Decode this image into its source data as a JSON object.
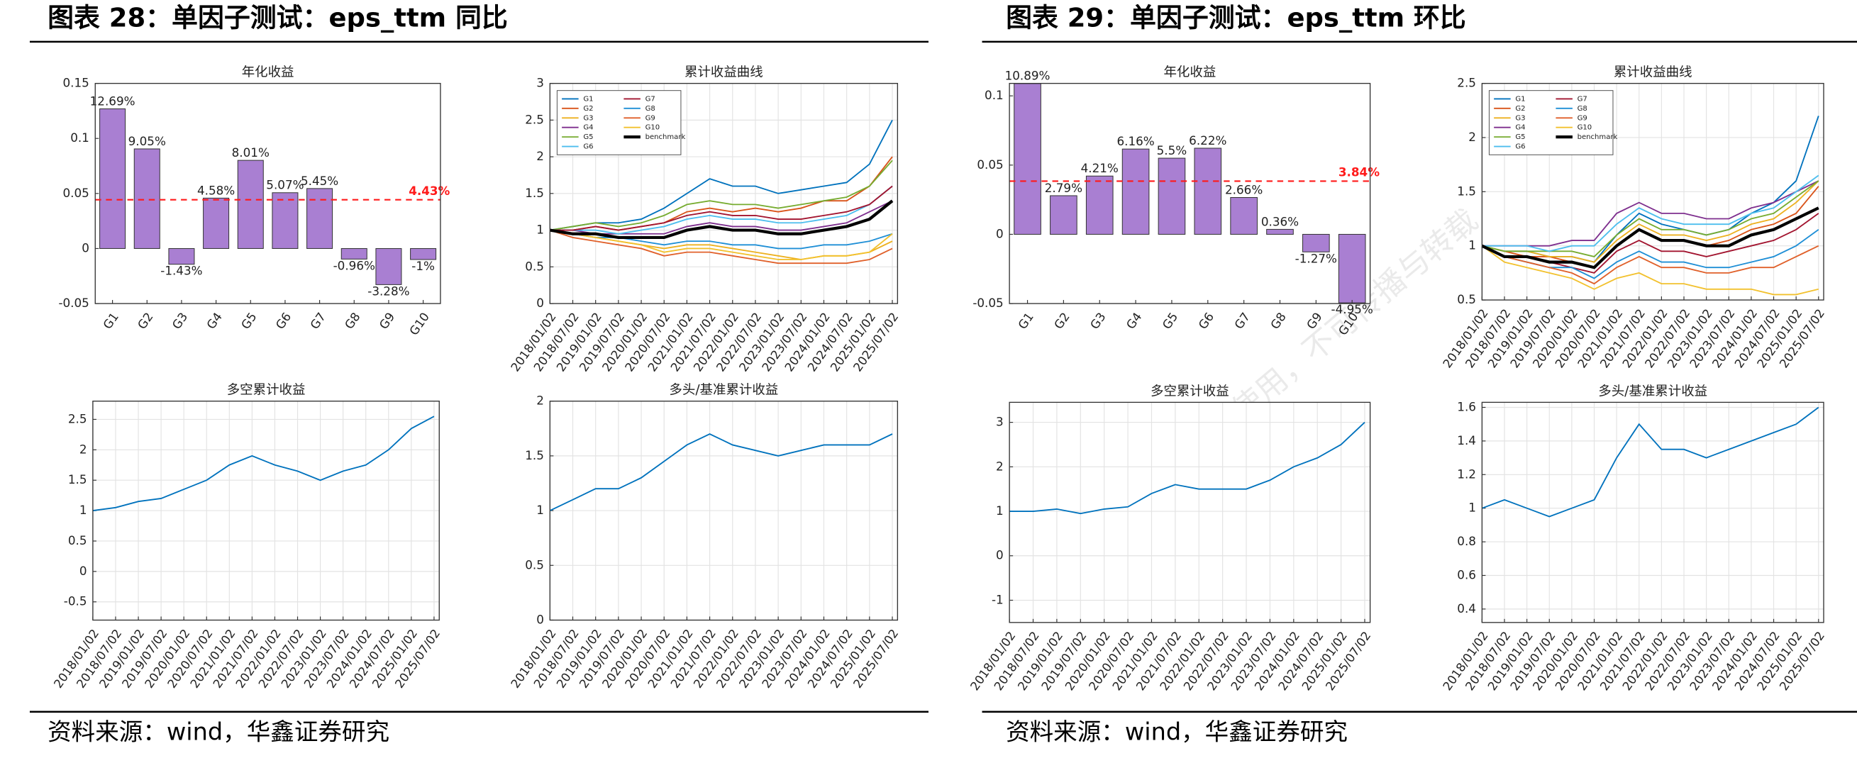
{
  "figures": [
    {
      "title": "图表 28：单因子测试：eps_ttm 同比",
      "source": "资料来源：wind，华鑫证券研究"
    },
    {
      "title": "图表 29：单因子测试：eps_ttm 环比",
      "source": "资料来源：wind，华鑫证券研究"
    }
  ],
  "watermark": "仅供本人内部使用，不可传播与转载",
  "chart_data": [
    {
      "type": "bar",
      "title": "年化收益",
      "categories": [
        "G1",
        "G2",
        "G3",
        "G4",
        "G5",
        "G6",
        "G7",
        "G8",
        "G9",
        "G10"
      ],
      "values": [
        0.1269,
        0.0905,
        -0.0143,
        0.0458,
        0.0801,
        0.0507,
        0.0545,
        -0.0096,
        -0.0328,
        -0.01
      ],
      "value_labels": [
        "12.69%",
        "9.05%",
        "-1.43%",
        "4.58%",
        "8.01%",
        "5.07%",
        "5.45%",
        "-0.96%",
        "-3.28%",
        "-1%"
      ],
      "color": "#a97fd2",
      "ylim": [
        -0.05,
        0.15
      ],
      "yticks": [
        -0.05,
        0,
        0.05,
        0.1,
        0.15
      ],
      "grid": false,
      "reference_line": {
        "value": 0.0443,
        "label": "4.43%",
        "color": "#ff1a1a"
      }
    },
    {
      "type": "line",
      "title": "累计收益曲线",
      "x": [
        "2018/01/02",
        "2018/07/02",
        "2019/01/02",
        "2019/07/02",
        "2020/01/02",
        "2020/07/02",
        "2021/01/02",
        "2021/07/02",
        "2022/01/02",
        "2022/07/02",
        "2023/01/02",
        "2023/07/02",
        "2024/01/02",
        "2024/07/02",
        "2025/01/02",
        "2025/07/02"
      ],
      "ylim": [
        0,
        3
      ],
      "yticks": [
        0,
        0.5,
        1,
        1.5,
        2,
        2.5,
        3
      ],
      "grid": true,
      "legend": "upper left",
      "series": [
        {
          "name": "G1",
          "color": "#0072bd",
          "values": [
            1,
            1.05,
            1.1,
            1.1,
            1.15,
            1.3,
            1.5,
            1.7,
            1.6,
            1.6,
            1.5,
            1.55,
            1.6,
            1.65,
            1.9,
            2.5
          ]
        },
        {
          "name": "G2",
          "color": "#d95319",
          "values": [
            1,
            1,
            1.05,
            1,
            1.05,
            1.1,
            1.25,
            1.3,
            1.25,
            1.3,
            1.25,
            1.3,
            1.4,
            1.4,
            1.6,
            2
          ]
        },
        {
          "name": "G3",
          "color": "#edb120",
          "values": [
            1,
            0.95,
            0.9,
            0.85,
            0.8,
            0.75,
            0.8,
            0.8,
            0.75,
            0.7,
            0.65,
            0.6,
            0.65,
            0.65,
            0.7,
            0.85
          ]
        },
        {
          "name": "G4",
          "color": "#7e2f8e",
          "values": [
            1,
            1,
            0.95,
            0.95,
            0.95,
            0.95,
            1.05,
            1.1,
            1.05,
            1.05,
            1,
            1,
            1.05,
            1.1,
            1.25,
            1.4
          ]
        },
        {
          "name": "G5",
          "color": "#77ac30",
          "values": [
            1,
            1.05,
            1.1,
            1.05,
            1.1,
            1.2,
            1.35,
            1.4,
            1.35,
            1.35,
            1.3,
            1.35,
            1.4,
            1.45,
            1.6,
            1.95
          ]
        },
        {
          "name": "G6",
          "color": "#4dbeee",
          "values": [
            1,
            1,
            1,
            0.95,
            1,
            1.05,
            1.15,
            1.2,
            1.15,
            1.15,
            1.1,
            1.1,
            1.15,
            1.2,
            1.35,
            1.6
          ]
        },
        {
          "name": "G7",
          "color": "#a2142f",
          "values": [
            1,
            1,
            1.05,
            1,
            1.05,
            1.1,
            1.2,
            1.25,
            1.2,
            1.2,
            1.15,
            1.15,
            1.2,
            1.25,
            1.35,
            1.6
          ]
        },
        {
          "name": "G8",
          "color": "#1f8fd6",
          "values": [
            1,
            0.95,
            0.9,
            0.9,
            0.85,
            0.8,
            0.85,
            0.85,
            0.8,
            0.8,
            0.75,
            0.75,
            0.8,
            0.8,
            0.85,
            0.95
          ]
        },
        {
          "name": "G9",
          "color": "#e0602a",
          "values": [
            1,
            0.9,
            0.85,
            0.8,
            0.75,
            0.65,
            0.7,
            0.7,
            0.65,
            0.6,
            0.55,
            0.55,
            0.55,
            0.55,
            0.6,
            0.75
          ]
        },
        {
          "name": "G10",
          "color": "#f2c12e",
          "values": [
            1,
            0.95,
            0.9,
            0.85,
            0.8,
            0.7,
            0.75,
            0.75,
            0.7,
            0.65,
            0.6,
            0.6,
            0.65,
            0.65,
            0.7,
            0.95
          ]
        },
        {
          "name": "benchmark",
          "color": "#000000",
          "line_width": 2.5,
          "values": [
            1,
            0.95,
            0.95,
            0.9,
            0.9,
            0.9,
            1,
            1.05,
            1,
            1,
            0.95,
            0.95,
            1,
            1.05,
            1.15,
            1.4
          ]
        }
      ]
    },
    {
      "type": "line",
      "title": "多空累计收益",
      "x": [
        "2018/01/02",
        "2018/07/02",
        "2019/01/02",
        "2019/07/02",
        "2020/01/02",
        "2020/07/02",
        "2021/01/02",
        "2021/07/02",
        "2022/01/02",
        "2022/07/02",
        "2023/01/02",
        "2023/07/02",
        "2024/01/02",
        "2024/07/02",
        "2025/01/02",
        "2025/07/02"
      ],
      "ylim": [
        -0.8,
        2.8
      ],
      "yticks": [
        -0.5,
        0,
        0.5,
        1,
        1.5,
        2,
        2.5
      ],
      "grid": true,
      "color": "#0072bd",
      "values": [
        1,
        1.05,
        1.15,
        1.2,
        1.35,
        1.5,
        1.75,
        1.9,
        1.75,
        1.65,
        1.5,
        1.65,
        1.75,
        2,
        2.35,
        2.55
      ]
    },
    {
      "type": "line",
      "title": "多头/基准累计收益",
      "x": [
        "2018/01/02",
        "2018/07/02",
        "2019/01/02",
        "2019/07/02",
        "2020/01/02",
        "2020/07/02",
        "2021/01/02",
        "2021/07/02",
        "2022/01/02",
        "2022/07/02",
        "2023/01/02",
        "2023/07/02",
        "2024/01/02",
        "2024/07/02",
        "2025/01/02",
        "2025/07/02"
      ],
      "ylim": [
        0,
        2
      ],
      "yticks": [
        0,
        0.5,
        1,
        1.5,
        2
      ],
      "grid": true,
      "color": "#0072bd",
      "values": [
        1,
        1.1,
        1.2,
        1.2,
        1.3,
        1.45,
        1.6,
        1.7,
        1.6,
        1.55,
        1.5,
        1.55,
        1.6,
        1.6,
        1.6,
        1.7
      ]
    },
    {
      "type": "bar",
      "title": "年化收益",
      "categories": [
        "G1",
        "G2",
        "G3",
        "G4",
        "G5",
        "G6",
        "G7",
        "G8",
        "G9",
        "G10"
      ],
      "values": [
        0.1089,
        0.0279,
        0.0421,
        0.0616,
        0.055,
        0.0622,
        0.0266,
        0.0036,
        -0.0127,
        -0.0495
      ],
      "value_labels": [
        "10.89%",
        "2.79%",
        "4.21%",
        "6.16%",
        "5.5%",
        "6.22%",
        "2.66%",
        "0.36%",
        "-1.27%",
        "-4.95%"
      ],
      "color": "#a97fd2",
      "ylim": [
        -0.05,
        0.109
      ],
      "yticks": [
        -0.05,
        0,
        0.05,
        0.1
      ],
      "grid": false,
      "reference_line": {
        "value": 0.0384,
        "label": "3.84%",
        "color": "#ff1a1a"
      }
    },
    {
      "type": "line",
      "title": "累计收益曲线",
      "x": [
        "2018/01/02",
        "2018/07/02",
        "2019/01/02",
        "2019/07/02",
        "2020/01/02",
        "2020/07/02",
        "2021/01/02",
        "2021/07/02",
        "2022/01/02",
        "2022/07/02",
        "2023/01/02",
        "2023/07/02",
        "2024/01/02",
        "2024/07/02",
        "2025/01/02",
        "2025/07/02"
      ],
      "ylim": [
        0.5,
        2.5
      ],
      "yticks": [
        0.5,
        1,
        1.5,
        2,
        2.5
      ],
      "grid": true,
      "legend": "upper left",
      "series": [
        {
          "name": "G1",
          "color": "#0072bd",
          "values": [
            1,
            0.95,
            0.95,
            0.9,
            0.9,
            0.85,
            1.1,
            1.3,
            1.2,
            1.15,
            1.1,
            1.15,
            1.3,
            1.4,
            1.6,
            2.2
          ]
        },
        {
          "name": "G2",
          "color": "#d95319",
          "values": [
            1,
            0.95,
            0.9,
            0.9,
            0.85,
            0.8,
            1,
            1.15,
            1.05,
            1.05,
            1,
            1.05,
            1.15,
            1.2,
            1.3,
            1.55
          ]
        },
        {
          "name": "G3",
          "color": "#edb120",
          "values": [
            1,
            0.95,
            0.95,
            0.9,
            0.9,
            0.85,
            1.05,
            1.2,
            1.1,
            1.1,
            1.05,
            1.1,
            1.2,
            1.25,
            1.4,
            1.6
          ]
        },
        {
          "name": "G4",
          "color": "#7e2f8e",
          "values": [
            1,
            1,
            1,
            1,
            1.05,
            1.05,
            1.3,
            1.4,
            1.3,
            1.3,
            1.25,
            1.25,
            1.35,
            1.4,
            1.5,
            1.6
          ]
        },
        {
          "name": "G5",
          "color": "#77ac30",
          "values": [
            1,
            0.95,
            0.95,
            0.95,
            0.95,
            0.9,
            1.1,
            1.25,
            1.15,
            1.15,
            1.1,
            1.15,
            1.25,
            1.3,
            1.45,
            1.6
          ]
        },
        {
          "name": "G6",
          "color": "#4dbeee",
          "values": [
            1,
            1,
            1,
            0.95,
            1,
            1,
            1.2,
            1.35,
            1.25,
            1.2,
            1.2,
            1.2,
            1.3,
            1.35,
            1.5,
            1.65
          ]
        },
        {
          "name": "G7",
          "color": "#a2142f",
          "values": [
            1,
            0.9,
            0.9,
            0.85,
            0.8,
            0.75,
            0.95,
            1.05,
            0.95,
            0.95,
            0.9,
            0.95,
            1,
            1.05,
            1.15,
            1.3
          ]
        },
        {
          "name": "G8",
          "color": "#1f8fd6",
          "values": [
            1,
            0.9,
            0.85,
            0.8,
            0.8,
            0.7,
            0.85,
            0.95,
            0.85,
            0.85,
            0.8,
            0.8,
            0.85,
            0.9,
            1,
            1.15
          ]
        },
        {
          "name": "G9",
          "color": "#e0602a",
          "values": [
            1,
            0.9,
            0.85,
            0.8,
            0.75,
            0.65,
            0.8,
            0.9,
            0.8,
            0.8,
            0.75,
            0.75,
            0.8,
            0.8,
            0.9,
            1
          ]
        },
        {
          "name": "G10",
          "color": "#f2c12e",
          "values": [
            1,
            0.85,
            0.8,
            0.75,
            0.7,
            0.6,
            0.7,
            0.75,
            0.65,
            0.65,
            0.6,
            0.6,
            0.6,
            0.55,
            0.55,
            0.6
          ]
        },
        {
          "name": "benchmark",
          "color": "#000000",
          "line_width": 2.5,
          "values": [
            1,
            0.9,
            0.9,
            0.85,
            0.85,
            0.8,
            1,
            1.15,
            1.05,
            1.05,
            1,
            1,
            1.1,
            1.15,
            1.25,
            1.35
          ]
        }
      ]
    },
    {
      "type": "line",
      "title": "多空累计收益",
      "x": [
        "2018/01/02",
        "2018/07/02",
        "2019/01/02",
        "2019/07/02",
        "2020/01/02",
        "2020/07/02",
        "2021/01/02",
        "2021/07/02",
        "2022/01/02",
        "2022/07/02",
        "2023/01/02",
        "2023/07/02",
        "2024/01/02",
        "2024/07/02",
        "2025/01/02",
        "2025/07/02"
      ],
      "ylim": [
        -1.5,
        3.45
      ],
      "yticks": [
        -1,
        0,
        1,
        2,
        3
      ],
      "grid": true,
      "color": "#0072bd",
      "values": [
        1,
        1,
        1.05,
        0.95,
        1.05,
        1.1,
        1.4,
        1.6,
        1.5,
        1.5,
        1.5,
        1.7,
        2,
        2.2,
        2.5,
        3
      ]
    },
    {
      "type": "line",
      "title": "多头/基准累计收益",
      "x": [
        "2018/01/02",
        "2018/07/02",
        "2019/01/02",
        "2019/07/02",
        "2020/01/02",
        "2020/07/02",
        "2021/01/02",
        "2021/07/02",
        "2022/01/02",
        "2022/07/02",
        "2023/01/02",
        "2023/07/02",
        "2024/01/02",
        "2024/07/02",
        "2025/01/02",
        "2025/07/02"
      ],
      "ylim": [
        0.32,
        1.63
      ],
      "yticks": [
        0.4,
        0.6,
        0.8,
        1,
        1.2,
        1.4,
        1.6
      ],
      "grid": true,
      "color": "#0072bd",
      "values": [
        1,
        1.05,
        1,
        0.95,
        1,
        1.05,
        1.3,
        1.5,
        1.35,
        1.35,
        1.3,
        1.35,
        1.4,
        1.45,
        1.5,
        1.6
      ]
    }
  ]
}
